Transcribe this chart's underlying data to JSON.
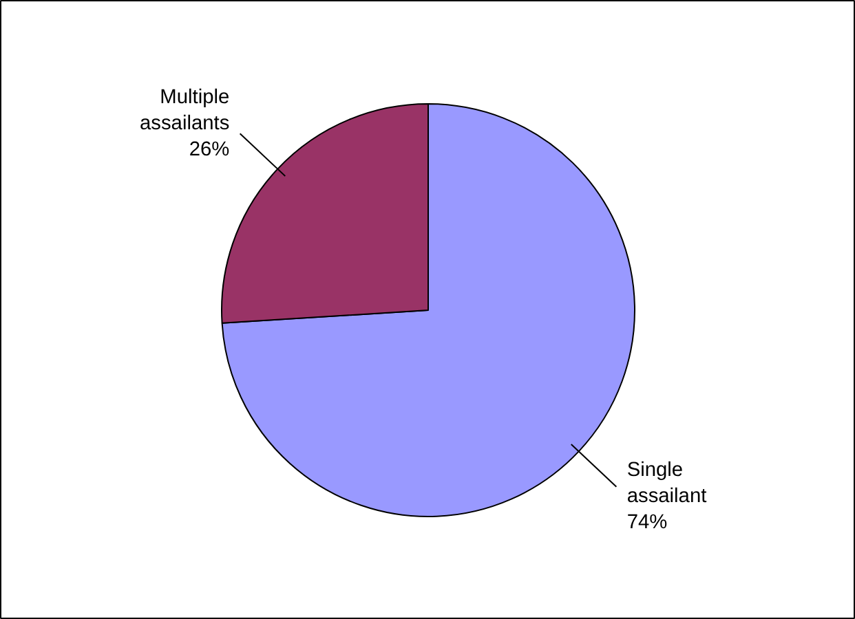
{
  "chart_data": {
    "type": "pie",
    "categories": [
      "Single assailant",
      "Multiple assailants"
    ],
    "values": [
      74,
      26
    ],
    "colors": [
      "#9999ff",
      "#993366"
    ],
    "value_labels": [
      "74%",
      "26%"
    ]
  }
}
